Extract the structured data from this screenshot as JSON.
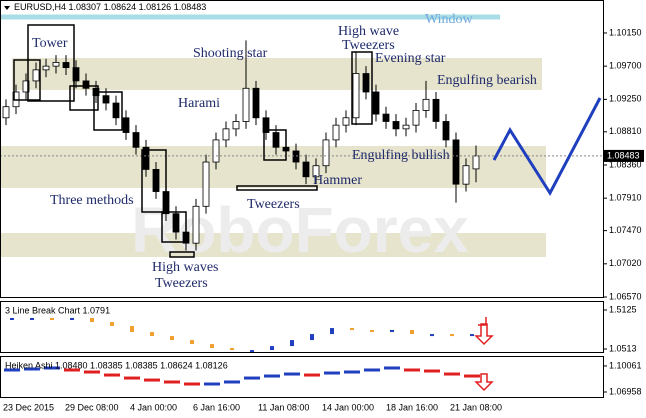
{
  "chart_data": [
    {
      "type": "candlestick",
      "title": "EURUSD,H4",
      "watermark": "RoboForex",
      "up_color": "#ffffff",
      "down_color": "#000000",
      "open": [
        1.09,
        1.0915,
        1.0935,
        1.095,
        1.0965,
        1.097,
        1.0975,
        1.0968,
        1.095,
        1.094,
        1.093,
        1.092,
        1.09,
        1.088,
        1.086,
        1.083,
        1.08,
        1.077,
        1.0745,
        1.073,
        1.078,
        1.084,
        1.087,
        1.0885,
        1.0895,
        1.094,
        1.09,
        1.088,
        1.086,
        1.0855,
        1.084,
        1.082,
        1.0835,
        1.087,
        1.089,
        1.09,
        1.096,
        1.0935,
        1.0905,
        1.0895,
        1.0885,
        1.089,
        1.091,
        1.0925,
        1.0895,
        1.087,
        1.081,
        1.08307
      ],
      "high": [
        1.0925,
        1.0945,
        1.096,
        1.0975,
        1.098,
        1.0985,
        1.0985,
        1.0978,
        1.096,
        1.095,
        1.094,
        1.093,
        1.091,
        1.089,
        1.087,
        1.084,
        1.081,
        1.078,
        1.0755,
        1.079,
        1.085,
        1.088,
        1.0895,
        1.0905,
        1.1005,
        1.095,
        1.091,
        1.089,
        1.087,
        1.0865,
        1.085,
        1.0845,
        1.088,
        1.09,
        1.091,
        1.099,
        1.097,
        1.0945,
        1.0915,
        1.0905,
        1.09,
        1.092,
        1.095,
        1.0935,
        1.0905,
        1.088,
        1.0845,
        1.08624
      ],
      "low": [
        1.089,
        1.0905,
        1.0925,
        1.094,
        1.0955,
        1.096,
        1.0958,
        1.094,
        1.093,
        1.092,
        1.091,
        1.089,
        1.087,
        1.085,
        1.082,
        1.079,
        1.076,
        1.0735,
        1.072,
        1.072,
        1.077,
        1.083,
        1.086,
        1.0875,
        1.0885,
        1.089,
        1.087,
        1.085,
        1.0845,
        1.083,
        1.081,
        1.081,
        1.0825,
        1.086,
        1.088,
        1.089,
        1.0925,
        1.0895,
        1.0885,
        1.0875,
        1.0875,
        1.088,
        1.09,
        1.0885,
        1.086,
        1.0785,
        1.08,
        1.08126
      ],
      "close": [
        1.0915,
        1.0935,
        1.095,
        1.0965,
        1.097,
        1.0975,
        1.0968,
        1.095,
        1.094,
        1.093,
        1.092,
        1.09,
        1.088,
        1.086,
        1.083,
        1.08,
        1.077,
        1.0745,
        1.073,
        1.078,
        1.084,
        1.087,
        1.0885,
        1.0895,
        1.094,
        1.09,
        1.088,
        1.086,
        1.0855,
        1.084,
        1.082,
        1.0835,
        1.087,
        1.089,
        1.09,
        1.096,
        1.0935,
        1.0905,
        1.0895,
        1.0885,
        1.089,
        1.091,
        1.0925,
        1.0895,
        1.087,
        1.081,
        1.0835,
        1.08483
      ],
      "ylim": [
        1.0657,
        1.1057
      ],
      "yticks": [
        {
          "value": 1.1015,
          "label": "1.10150"
        },
        {
          "value": 1.097,
          "label": "1.09700"
        },
        {
          "value": 1.0925,
          "label": "1.09250"
        },
        {
          "value": 1.0881,
          "label": "1.08810"
        },
        {
          "value": 1.0836,
          "label": "1.08360"
        },
        {
          "value": 1.0791,
          "label": "1.07910"
        },
        {
          "value": 1.0747,
          "label": "1.07470"
        },
        {
          "value": 1.0702,
          "label": "1.07020"
        },
        {
          "value": 1.0657,
          "label": "1.06570"
        }
      ],
      "x_labels": [
        "23 Dec 2015",
        "29 Dec 08:00",
        "4 Jan 00:00",
        "6 Jan 16:00",
        "11 Jan 08:00",
        "14 Jan 00:00",
        "18 Jan 16:00",
        "21 Jan 08:00"
      ],
      "annotations": [
        "Window",
        "Tower",
        "Shooting star",
        "High wave",
        "Tweezers",
        "Evening star",
        "Engulfing bearish",
        "Harami",
        "Engulfing bullish",
        "Hammer",
        "Three methods",
        "Tweezers",
        "High waves",
        "Tweezers"
      ]
    },
    {
      "type": "linebreak",
      "title": "3 Line Break Chart 1.0791",
      "up_color": "#1f3fbf",
      "down_color": "#f0a030",
      "values": [
        1.418,
        1.418,
        1.394,
        1.418,
        1.37,
        1.323,
        1.252,
        1.205,
        1.157,
        1.11,
        1.063,
        1.039,
        1.039,
        1.086,
        1.157,
        1.228,
        1.299,
        1.276,
        1.252,
        1.276,
        1.228,
        1.228,
        1.205,
        1.228
      ],
      "ylim": [
        1.016,
        1.607
      ],
      "yticks": [
        1.5125,
        1.0513
      ]
    },
    {
      "type": "heikenashi",
      "title": "Heiken Ashi 1.08480 1.08385 1.08385 1.08624 1.08126",
      "up_color": "#1f3fbf",
      "down_color": "#e02020",
      "values": [
        1.0958,
        1.097,
        1.0982,
        1.0958,
        1.0934,
        1.0898,
        1.0862,
        1.0838,
        1.0815,
        1.0791,
        1.0791,
        1.0815,
        1.0862,
        1.0886,
        1.091,
        1.0898,
        1.0922,
        1.0934,
        1.0958,
        1.0982,
        1.0958,
        1.0946,
        1.091,
        1.0886
      ],
      "ylim": [
        1.0636,
        1.1113
      ],
      "yticks": [
        1.10061,
        1.06958
      ]
    }
  ]
}
